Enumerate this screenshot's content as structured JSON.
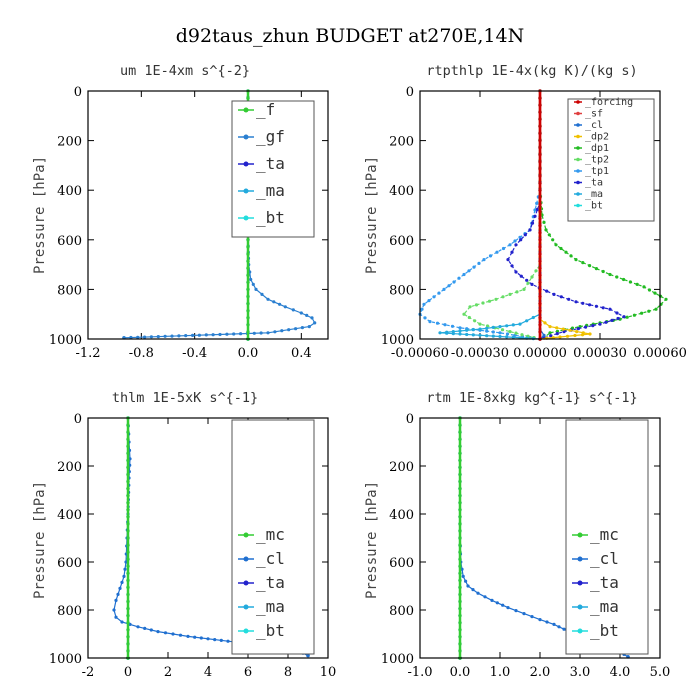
{
  "figure_title": "d92taus_zhun  BUDGET at270E,14N",
  "colors": {
    "forcing": "#cc0000",
    "sf": "#e04040",
    "cl": "#1f6fd0",
    "dp2": "#f0c000",
    "dp1": "#22bb22",
    "tp2": "#66dd66",
    "tp1": "#3399ee",
    "ta": "#2222cc",
    "ma": "#22aadd",
    "bt": "#22dddd",
    "mc": "#33cc33",
    "f": "#33cc33",
    "gf": "#2a7fd0"
  },
  "chart_data": [
    {
      "type": "line",
      "title": "um  1E-4xm  s^{-2}",
      "xlabel": "",
      "ylabel": "Pressure [hPa]",
      "xlim": [
        -1.2,
        0.6
      ],
      "ylim": [
        1000,
        0
      ],
      "xtick_values": [
        -1.2,
        -0.8,
        -0.4,
        0.0,
        0.4
      ],
      "xtick_labels": [
        "-1.2",
        "-0.8",
        "-0.4",
        "0.0",
        "0.4"
      ],
      "ytick_values": [
        0,
        200,
        400,
        600,
        800,
        1000
      ],
      "ytick_labels": [
        "0",
        "200",
        "400",
        "600",
        "800",
        "1000"
      ],
      "legend": {
        "position": "top-right",
        "entries": [
          "_f",
          "_gf",
          "_ta",
          "_ma",
          "_bt"
        ]
      },
      "series": [
        {
          "name": "_gf",
          "x": [
            0,
            0,
            0,
            0,
            0,
            0,
            0,
            0.005,
            0.02,
            0.06,
            0.15,
            0.28,
            0.4,
            0.48,
            0.5,
            0.46,
            0.15,
            -0.93
          ],
          "y": [
            0,
            100,
            200,
            300,
            400,
            500,
            600,
            700,
            760,
            800,
            840,
            870,
            895,
            915,
            935,
            950,
            975,
            995
          ]
        },
        {
          "name": "_ta",
          "x": [
            0,
            0
          ],
          "y": [
            0,
            1000
          ]
        },
        {
          "name": "_ma",
          "x": [
            0,
            0
          ],
          "y": [
            0,
            1000
          ]
        },
        {
          "name": "_bt",
          "x": [
            0,
            0
          ],
          "y": [
            0,
            1000
          ]
        },
        {
          "name": "_f",
          "x": [
            0,
            0
          ],
          "y": [
            0,
            1000
          ]
        }
      ]
    },
    {
      "type": "line",
      "title": "rtpthlp  1E-4x(kg K)/(kg s)",
      "xlabel": "",
      "ylabel": "Pressure [hPa]",
      "xlim": [
        -0.0006,
        0.0006
      ],
      "ylim": [
        1000,
        0
      ],
      "xtick_values": [
        -0.0006,
        -0.0003,
        0.0,
        0.0003,
        0.0006
      ],
      "xtick_labels": [
        "-0.00060",
        "-0.00030",
        "0.00000",
        "0.00030",
        "0.00060"
      ],
      "ytick_values": [
        0,
        200,
        400,
        600,
        800,
        1000
      ],
      "ytick_labels": [
        "0",
        "200",
        "400",
        "600",
        "800",
        "1000"
      ],
      "legend": {
        "position": "top-right",
        "entries": [
          "_forcing",
          "_sf",
          "_cl",
          "_dp2",
          "_dp1",
          "_tp2",
          "_tp1",
          "_ta",
          "_ma",
          "_bt"
        ]
      },
      "series": [
        {
          "name": "_dp1",
          "x": [
            0,
            0,
            1e-05,
            3e-05,
            8e-05,
            0.00018,
            0.00035,
            0.00052,
            0.00063,
            0.00058,
            0.0004,
            0.0002,
            5e-05,
            2e-05
          ],
          "y": [
            0,
            400,
            500,
            560,
            620,
            680,
            740,
            790,
            840,
            880,
            920,
            950,
            975,
            995
          ]
        },
        {
          "name": "_tp1",
          "x": [
            0,
            0,
            -5e-05,
            -0.00015,
            -0.00028,
            -0.00038,
            -0.00048,
            -0.00058,
            -0.0006,
            -0.00055,
            -0.0004,
            -0.0002,
            -5e-05
          ],
          "y": [
            0,
            400,
            560,
            620,
            680,
            740,
            800,
            860,
            900,
            930,
            955,
            975,
            995
          ]
        },
        {
          "name": "_ta",
          "x": [
            0,
            0,
            -5e-05,
            -0.00012,
            -0.00016,
            -0.00012,
            -4e-05,
            7e-05,
            0.00018,
            0.00035,
            0.00042,
            0.0003,
            0.00012,
            2e-05
          ],
          "y": [
            0,
            450,
            560,
            620,
            680,
            730,
            780,
            820,
            850,
            880,
            910,
            940,
            970,
            995
          ]
        },
        {
          "name": "_tp2",
          "x": [
            0,
            0,
            -8e-05,
            -0.00022,
            -0.00035,
            -0.00038,
            -0.0003,
            -0.00015,
            -3e-05
          ],
          "y": [
            0,
            700,
            800,
            840,
            870,
            900,
            940,
            970,
            995
          ]
        },
        {
          "name": "_ma",
          "x": [
            0,
            0,
            -0.0001,
            -0.0003,
            -0.0005,
            -0.0002,
            0.0
          ],
          "y": [
            0,
            900,
            940,
            960,
            975,
            990,
            1000
          ]
        },
        {
          "name": "_dp2",
          "x": [
            0,
            0,
            5e-05,
            0.00015,
            0.00025,
            0.0001,
            0.0
          ],
          "y": [
            0,
            920,
            950,
            965,
            980,
            992,
            1000
          ]
        },
        {
          "name": "_cl",
          "x": [
            0,
            0,
            2e-05,
            0.0
          ],
          "y": [
            0,
            960,
            985,
            1000
          ]
        },
        {
          "name": "_bt",
          "x": [
            0,
            0
          ],
          "y": [
            0,
            1000
          ]
        },
        {
          "name": "_sf",
          "x": [
            0,
            0
          ],
          "y": [
            0,
            1000
          ]
        },
        {
          "name": "_forcing",
          "x": [
            0,
            0
          ],
          "y": [
            0,
            1000
          ]
        }
      ]
    },
    {
      "type": "line",
      "title": "thlm  1E-5xK  s^{-1}",
      "xlabel": "",
      "ylabel": "Pressure [hPa]",
      "xlim": [
        -2,
        10
      ],
      "ylim": [
        1000,
        0
      ],
      "xtick_values": [
        -2,
        0,
        2,
        4,
        6,
        8,
        10
      ],
      "xtick_labels": [
        "-2",
        "0",
        "2",
        "4",
        "6",
        "8",
        "10"
      ],
      "ytick_values": [
        0,
        200,
        400,
        600,
        800,
        1000
      ],
      "ytick_labels": [
        "0",
        "200",
        "400",
        "600",
        "800",
        "1000"
      ],
      "legend": {
        "position": "top-right",
        "entries": [
          "_mc",
          "_cl",
          "_ta",
          "_ma",
          "_bt"
        ]
      },
      "series": [
        {
          "name": "_cl",
          "x": [
            0,
            0.05,
            0.1,
            0.05,
            0,
            -0.05,
            -0.1,
            -0.2,
            -0.4,
            -0.6,
            -0.7,
            -0.6,
            -0.3,
            0.5,
            1.5,
            3.0,
            5.0,
            7.0,
            8.5,
            9.0
          ],
          "y": [
            0,
            100,
            170,
            250,
            400,
            500,
            600,
            660,
            710,
            760,
            800,
            830,
            850,
            870,
            890,
            910,
            930,
            950,
            970,
            990
          ]
        },
        {
          "name": "_ta",
          "x": [
            0,
            0
          ],
          "y": [
            0,
            1000
          ]
        },
        {
          "name": "_ma",
          "x": [
            0,
            0
          ],
          "y": [
            0,
            1000
          ]
        },
        {
          "name": "_bt",
          "x": [
            0,
            0
          ],
          "y": [
            0,
            1000
          ]
        },
        {
          "name": "_mc",
          "x": [
            0,
            0
          ],
          "y": [
            0,
            1000
          ]
        }
      ]
    },
    {
      "type": "line",
      "title": "rtm  1E-8xkg kg^{-1}  s^{-1}",
      "xlabel": "",
      "ylabel": "Pressure [hPa]",
      "xlim": [
        -1.0,
        5.0
      ],
      "ylim": [
        1000,
        0
      ],
      "xtick_values": [
        -1.0,
        0.0,
        1.0,
        2.0,
        3.0,
        4.0,
        5.0
      ],
      "xtick_labels": [
        "-1.0",
        "0.0",
        "1.0",
        "2.0",
        "3.0",
        "4.0",
        "5.0"
      ],
      "ytick_values": [
        0,
        200,
        400,
        600,
        800,
        1000
      ],
      "ytick_labels": [
        "0",
        "200",
        "400",
        "600",
        "800",
        "1000"
      ],
      "legend": {
        "position": "top-right",
        "entries": [
          "_mc",
          "_cl",
          "_ta",
          "_ma",
          "_bt"
        ]
      },
      "series": [
        {
          "name": "_cl",
          "x": [
            0,
            0,
            0.02,
            0.08,
            0.2,
            0.45,
            0.8,
            1.2,
            1.6,
            2.0,
            2.35,
            2.6,
            2.8,
            3.0,
            3.3,
            3.7,
            4.1,
            4.2
          ],
          "y": [
            0,
            500,
            600,
            660,
            700,
            730,
            760,
            790,
            815,
            840,
            860,
            880,
            900,
            920,
            945,
            965,
            985,
            995
          ]
        },
        {
          "name": "_ta",
          "x": [
            0,
            0
          ],
          "y": [
            0,
            1000
          ]
        },
        {
          "name": "_ma",
          "x": [
            0,
            0
          ],
          "y": [
            0,
            1000
          ]
        },
        {
          "name": "_bt",
          "x": [
            0,
            0
          ],
          "y": [
            0,
            1000
          ]
        },
        {
          "name": "_mc",
          "x": [
            0,
            0
          ],
          "y": [
            0,
            1000
          ]
        }
      ]
    }
  ]
}
